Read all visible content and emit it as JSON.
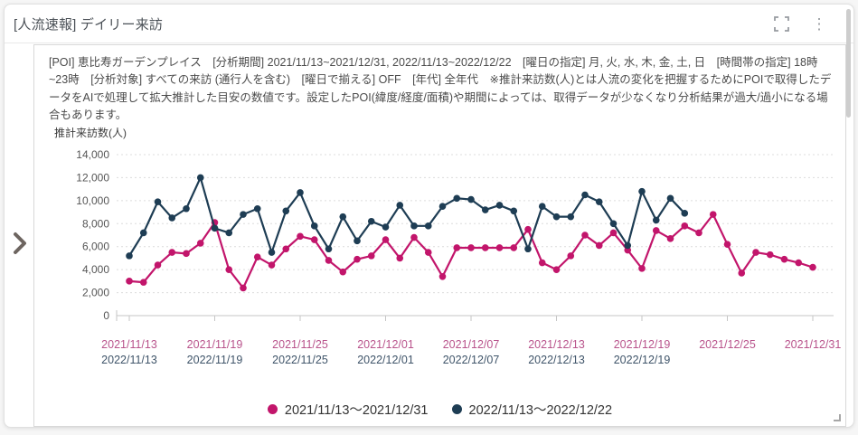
{
  "header": {
    "title": "[人流速報] デイリー来訪"
  },
  "icons": {
    "fullscreen": "corner-brackets",
    "menu": "⋮",
    "expand_chevron": "❯",
    "resize_handle": "corner-angle"
  },
  "description": "[POI] 恵比寿ガーデンプレイス　[分析期間] 2021/11/13~2021/12/31, 2022/11/13~2022/12/22　[曜日の指定] 月, 火, 水, 木, 金, 土, 日　[時間帯の指定] 18時~23時　[分析対象] すべての来訪 (通行人を含む)　[曜日で揃える] OFF　[年代] 全年代　※推計来訪数(人)とは人流の変化を把握するためにPOIで取得したデータをAIで処理して拡大推計した目安の数値です。設定したPOI(緯度/経度/面積)や期間によっては、取得データが少なくなり分析結果が過大/過小になる場合もあります。",
  "chart_data": {
    "type": "line",
    "title": "",
    "ylabel": "推計来訪数(人)",
    "ylim": [
      0,
      14000
    ],
    "ytick_step": 2000,
    "ytick_labels": [
      "0",
      "2,000",
      "4,000",
      "6,000",
      "8,000",
      "10,000",
      "12,000",
      "14,000"
    ],
    "grid": "horizontal-dashed",
    "legend_position": "bottom-center",
    "x_unit": "day",
    "num_days": 49,
    "tick_every_days": 6,
    "xtick_labels_top": [
      "2021/11/13",
      "2021/11/19",
      "2021/11/25",
      "2021/12/01",
      "2021/12/07",
      "2021/12/13",
      "2021/12/19",
      "2021/12/25",
      "2021/12/31"
    ],
    "xtick_labels_bottom": [
      "2022/11/13",
      "2022/11/19",
      "2022/11/25",
      "2022/12/01",
      "2022/12/07",
      "2022/12/13",
      "2022/12/19",
      "",
      ""
    ],
    "xtick_label_colors": {
      "top": "#b9548c",
      "bottom": "#3f5469"
    },
    "series": [
      {
        "name": "2021/11/13〜2021/12/31",
        "color": "#c2156b",
        "values": [
          3000,
          2900,
          4400,
          5500,
          5400,
          6300,
          8100,
          4000,
          2400,
          5100,
          4400,
          5800,
          6900,
          6600,
          4800,
          3800,
          4900,
          5200,
          6600,
          5000,
          6800,
          5500,
          3400,
          5900,
          5900,
          5900,
          5900,
          5900,
          7500,
          4600,
          4000,
          5200,
          7000,
          6100,
          7200,
          5700,
          4100,
          7400,
          6700,
          7800,
          7200,
          8800,
          6200,
          3700,
          5500,
          5300,
          4900,
          4600,
          4200
        ]
      },
      {
        "name": "2022/11/13〜2022/12/22",
        "color": "#1e3d54",
        "values": [
          5200,
          7200,
          9900,
          8500,
          9300,
          12000,
          7600,
          7200,
          8800,
          9300,
          5500,
          9100,
          10700,
          7800,
          5800,
          8600,
          6500,
          8200,
          7700,
          9600,
          7800,
          7800,
          9500,
          10200,
          10100,
          9200,
          9600,
          9100,
          5800,
          9500,
          8600,
          8600,
          10500,
          9900,
          8000,
          6100,
          10800,
          8300,
          10200,
          8900
        ]
      }
    ]
  }
}
